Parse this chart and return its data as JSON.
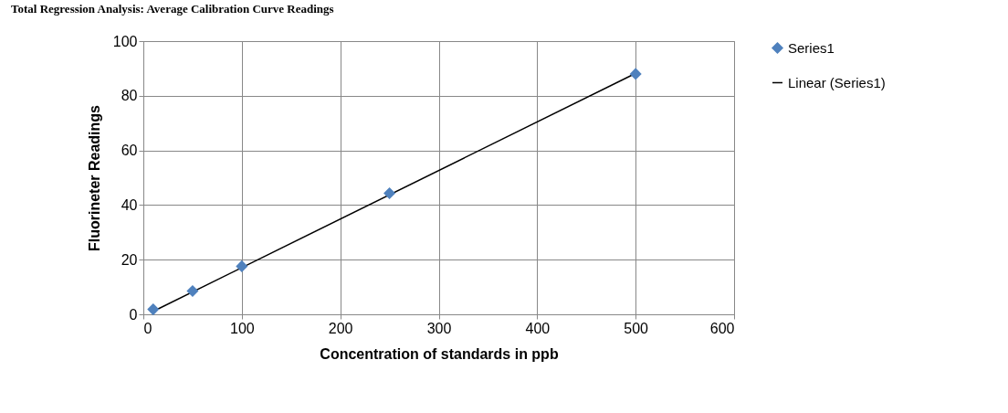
{
  "chart_data": {
    "type": "scatter",
    "title": "Total Regression Analysis: Average Calibration Curve Readings",
    "xlabel": "Concentration of standards in ppb",
    "ylabel": "Fluorineter Readings",
    "x": [
      10,
      50,
      100,
      250,
      500
    ],
    "series": [
      {
        "name": "Series1",
        "color": "#4f81bd",
        "marker": "diamond",
        "values": [
          1.8,
          8.5,
          17.6,
          44.3,
          88
        ]
      },
      {
        "name": "Linear (Series1)",
        "type": "line",
        "color": "#000000",
        "x": [
          10,
          500
        ],
        "values": [
          1.1,
          88.2
        ]
      }
    ],
    "xlim": [
      0,
      600
    ],
    "xticks": [
      0,
      100,
      200,
      300,
      400,
      500,
      600
    ],
    "ylim": [
      0,
      100
    ],
    "yticks": [
      0,
      20,
      40,
      60,
      80,
      100
    ],
    "grid": true,
    "legend": "right"
  }
}
